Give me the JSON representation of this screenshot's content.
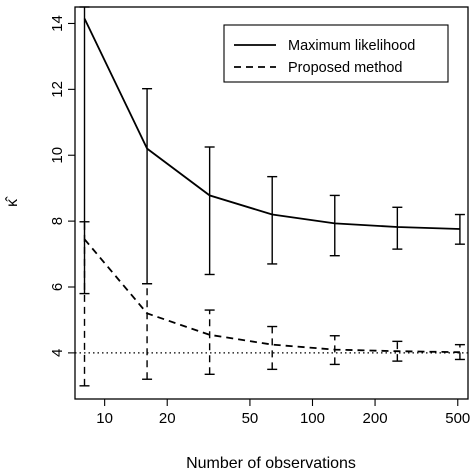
{
  "chart_data": {
    "type": "line",
    "title": "",
    "xlabel": "Number of observations",
    "ylabel": "κ̂",
    "x_scale": "log",
    "xlim": [
      7.2,
      560
    ],
    "ylim": [
      2.6,
      14.5
    ],
    "x_ticks": [
      10,
      20,
      50,
      100,
      200,
      500
    ],
    "y_ticks": [
      4,
      6,
      8,
      10,
      12,
      14
    ],
    "grid": false,
    "legend_position": "top-right",
    "x": [
      8,
      16,
      32,
      64,
      128,
      256,
      512
    ],
    "series": [
      {
        "name": "Maximum likelihood",
        "line_style": "solid",
        "values": [
          14.15,
          10.2,
          8.78,
          8.2,
          7.93,
          7.82,
          7.76
        ],
        "error_lower": [
          5.8,
          6.1,
          6.38,
          6.7,
          6.95,
          7.15,
          7.3
        ],
        "error_upper": [
          14.5,
          12.02,
          10.25,
          9.35,
          8.78,
          8.42,
          8.2
        ]
      },
      {
        "name": "Proposed method",
        "line_style": "dashed",
        "values": [
          7.45,
          5.2,
          4.55,
          4.25,
          4.1,
          4.05,
          4.02
        ],
        "error_lower": [
          3.0,
          3.2,
          3.35,
          3.5,
          3.65,
          3.75,
          3.8
        ],
        "error_upper": [
          7.98,
          6.1,
          5.3,
          4.8,
          4.52,
          4.35,
          4.25
        ]
      }
    ],
    "reference_line": {
      "y": 4,
      "style": "dotted"
    },
    "colors": {
      "lines": "#000000",
      "background": "#ffffff"
    }
  }
}
